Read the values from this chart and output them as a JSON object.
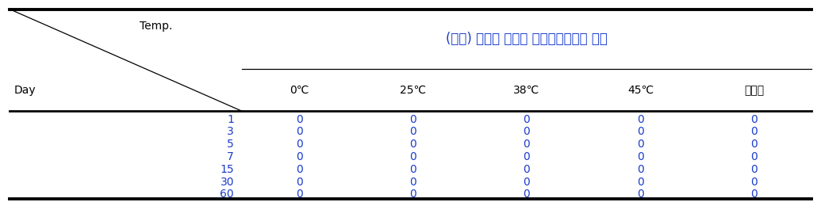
{
  "title": "(가칭) 이지함 바디랩 모이스춰라이징 로션",
  "header_day": "Day",
  "header_temp": "Temp.",
  "col_headers": [
    "0℃",
    "25℃",
    "38℃",
    "45℃",
    "자외선"
  ],
  "row_labels": [
    "1",
    "3",
    "5",
    "7",
    "15",
    "30",
    "60"
  ],
  "data": [
    [
      0,
      0,
      0,
      0,
      0
    ],
    [
      0,
      0,
      0,
      0,
      0
    ],
    [
      0,
      0,
      0,
      0,
      0
    ],
    [
      0,
      0,
      0,
      0,
      0
    ],
    [
      0,
      0,
      0,
      0,
      0
    ],
    [
      0,
      0,
      0,
      0,
      0
    ],
    [
      0,
      0,
      0,
      0,
      0
    ]
  ],
  "bg_color": "#ffffff",
  "text_color_day_num": "#1a3ccc",
  "text_color_data": "#1a3ccc",
  "text_color_header_black": "#000000",
  "text_color_title": "#1a3ccc",
  "text_color_col_header": "#000000",
  "border_color": "#000000",
  "figsize": [
    10.35,
    2.6
  ],
  "dpi": 100
}
